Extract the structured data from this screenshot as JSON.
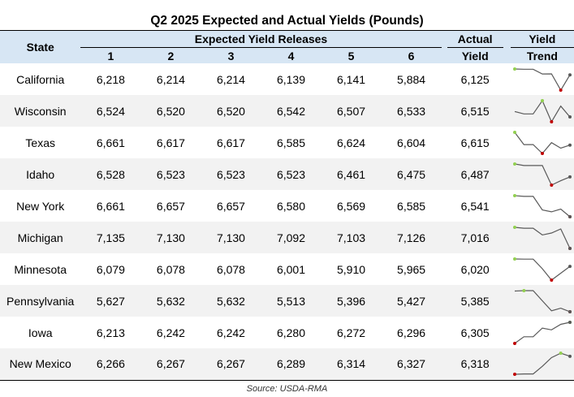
{
  "title": "Q2 2025 Expected and Actual Yields (Pounds)",
  "headers": {
    "state": "State",
    "expected_group": "Expected Yield Releases",
    "releases": [
      "1",
      "2",
      "3",
      "4",
      "5",
      "6"
    ],
    "actual_line1": "Actual",
    "actual_line2": "Yield",
    "trend_line1": "Yield",
    "trend_line2": "Trend"
  },
  "source": "Source: USDA-RMA",
  "colors": {
    "header_bg": "#d7e6f4",
    "stripe_bg": "#f2f2f2",
    "spark_line": "#595959",
    "spark_high": "#92d050",
    "spark_low": "#c00000",
    "spark_end": "#595959"
  },
  "chart_data": {
    "type": "table",
    "title": "Q2 2025 Expected and Actual Yields (Pounds)",
    "columns": [
      "State",
      "1",
      "2",
      "3",
      "4",
      "5",
      "6",
      "Actual Yield",
      "Yield Trend"
    ],
    "rows": [
      {
        "state": "California",
        "releases": [
          "6,218",
          "6,214",
          "6,214",
          "6,139",
          "6,141",
          "5,884"
        ],
        "actual": "6,125",
        "trend": [
          6218,
          6214,
          6214,
          6139,
          6141,
          5884,
          6125
        ]
      },
      {
        "state": "Wisconsin",
        "releases": [
          "6,524",
          "6,520",
          "6,520",
          "6,542",
          "6,507",
          "6,533"
        ],
        "actual": "6,515",
        "trend": [
          6524,
          6520,
          6520,
          6542,
          6507,
          6533,
          6515
        ]
      },
      {
        "state": "Texas",
        "releases": [
          "6,661",
          "6,617",
          "6,617",
          "6,585",
          "6,624",
          "6,604"
        ],
        "actual": "6,615",
        "trend": [
          6661,
          6617,
          6617,
          6585,
          6624,
          6604,
          6615
        ]
      },
      {
        "state": "Idaho",
        "releases": [
          "6,528",
          "6,523",
          "6,523",
          "6,523",
          "6,461",
          "6,475"
        ],
        "actual": "6,487",
        "trend": [
          6528,
          6523,
          6523,
          6523,
          6461,
          6475,
          6487
        ]
      },
      {
        "state": "New York",
        "releases": [
          "6,661",
          "6,657",
          "6,657",
          "6,580",
          "6,569",
          "6,585"
        ],
        "actual": "6,541",
        "trend": [
          6661,
          6657,
          6657,
          6580,
          6569,
          6585,
          6541
        ]
      },
      {
        "state": "Michigan",
        "releases": [
          "7,135",
          "7,130",
          "7,130",
          "7,092",
          "7,103",
          "7,126"
        ],
        "actual": "7,016",
        "trend": [
          7135,
          7130,
          7130,
          7092,
          7103,
          7126,
          7016
        ]
      },
      {
        "state": "Minnesota",
        "releases": [
          "6,079",
          "6,078",
          "6,078",
          "6,001",
          "5,910",
          "5,965"
        ],
        "actual": "6,020",
        "trend": [
          6079,
          6078,
          6078,
          6001,
          5910,
          5965,
          6020
        ]
      },
      {
        "state": "Pennsylvania",
        "releases": [
          "5,627",
          "5,632",
          "5,632",
          "5,513",
          "5,396",
          "5,427"
        ],
        "actual": "5,385",
        "trend": [
          5627,
          5632,
          5632,
          5513,
          5396,
          5427,
          5385
        ]
      },
      {
        "state": "Iowa",
        "releases": [
          "6,213",
          "6,242",
          "6,242",
          "6,280",
          "6,272",
          "6,296"
        ],
        "actual": "6,305",
        "trend": [
          6213,
          6242,
          6242,
          6280,
          6272,
          6296,
          6305
        ]
      },
      {
        "state": "New Mexico",
        "releases": [
          "6,266",
          "6,267",
          "6,267",
          "6,289",
          "6,314",
          "6,327"
        ],
        "actual": "6,318",
        "trend": [
          6266,
          6267,
          6267,
          6289,
          6314,
          6327,
          6318
        ]
      }
    ]
  }
}
